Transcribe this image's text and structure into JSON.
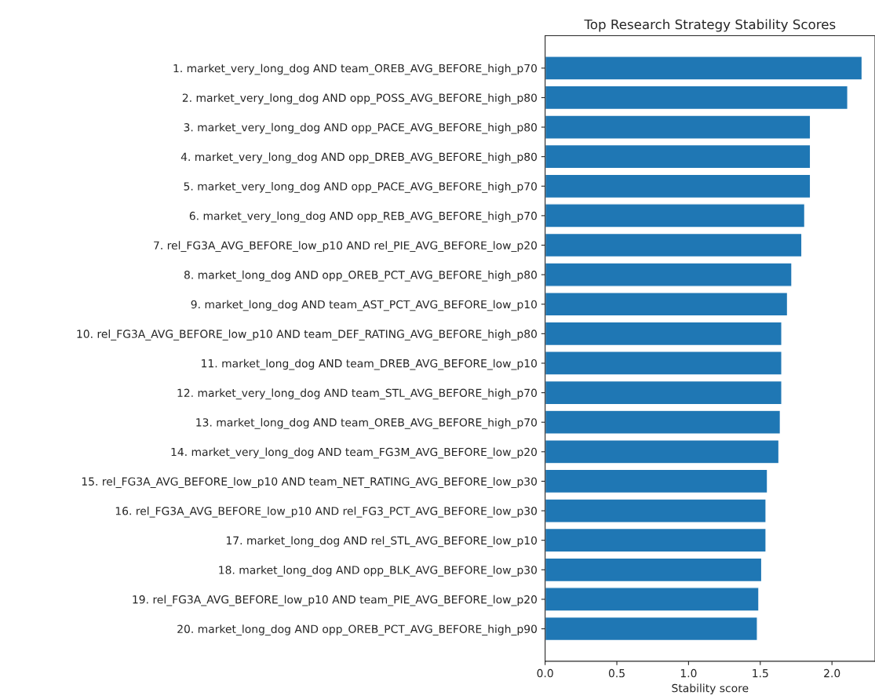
{
  "chart_data": {
    "type": "bar",
    "orientation": "horizontal",
    "title": "Top Research Strategy Stability Scores",
    "xlabel": "Stability score",
    "categories": [
      "1. market_very_long_dog AND team_OREB_AVG_BEFORE_high_p70",
      "2. market_very_long_dog AND opp_POSS_AVG_BEFORE_high_p80",
      "3. market_very_long_dog AND opp_PACE_AVG_BEFORE_high_p80",
      "4. market_very_long_dog AND opp_DREB_AVG_BEFORE_high_p80",
      "5. market_very_long_dog AND opp_PACE_AVG_BEFORE_high_p70",
      "6. market_very_long_dog AND opp_REB_AVG_BEFORE_high_p70",
      "7. rel_FG3A_AVG_BEFORE_low_p10 AND rel_PIE_AVG_BEFORE_low_p20",
      "8. market_long_dog AND opp_OREB_PCT_AVG_BEFORE_high_p80",
      "9. market_long_dog AND team_AST_PCT_AVG_BEFORE_low_p10",
      "10. rel_FG3A_AVG_BEFORE_low_p10 AND team_DEF_RATING_AVG_BEFORE_high_p80",
      "11. market_long_dog AND team_DREB_AVG_BEFORE_low_p10",
      "12. market_very_long_dog AND team_STL_AVG_BEFORE_high_p70",
      "13. market_long_dog AND team_OREB_AVG_BEFORE_high_p70",
      "14. market_very_long_dog AND team_FG3M_AVG_BEFORE_low_p20",
      "15. rel_FG3A_AVG_BEFORE_low_p10 AND team_NET_RATING_AVG_BEFORE_low_p30",
      "16. rel_FG3A_AVG_BEFORE_low_p10 AND rel_FG3_PCT_AVG_BEFORE_low_p30",
      "17. market_long_dog AND rel_STL_AVG_BEFORE_low_p10",
      "18. market_long_dog AND opp_BLK_AVG_BEFORE_low_p30",
      "19. rel_FG3A_AVG_BEFORE_low_p10 AND team_PIE_AVG_BEFORE_low_p20",
      "20. market_long_dog AND opp_OREB_PCT_AVG_BEFORE_high_p90"
    ],
    "values": [
      2.21,
      2.11,
      1.85,
      1.85,
      1.85,
      1.81,
      1.79,
      1.72,
      1.69,
      1.65,
      1.65,
      1.65,
      1.64,
      1.63,
      1.55,
      1.54,
      1.54,
      1.51,
      1.49,
      1.48
    ],
    "color": "#1f77b4",
    "xlim": [
      0,
      2.3
    ],
    "xticks": [
      {
        "value": 0,
        "label": "0.0"
      },
      0.5,
      {
        "value": 1,
        "label": "1.0"
      },
      1.5,
      {
        "value": 2,
        "label": "2.0"
      }
    ]
  }
}
